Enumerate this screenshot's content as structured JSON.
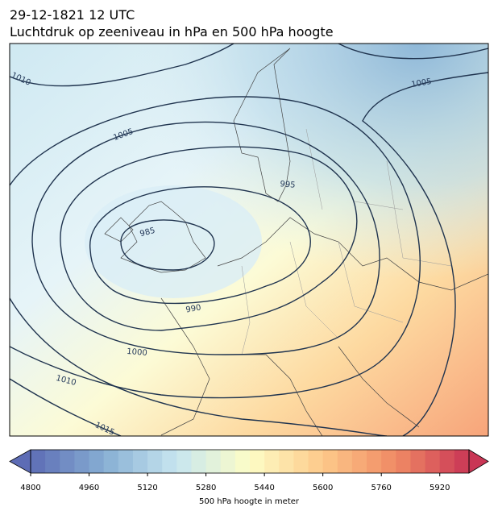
{
  "header": {
    "title": [
      "29-12-1821 12 UTC",
      "Luchtdruk op zeeniveau in hPa en 500 hPa hoogte"
    ]
  },
  "map": {
    "contour_labels": [
      1010,
      1005,
      995,
      985,
      990,
      1000,
      1010,
      1015,
      1005
    ]
  },
  "colorbar": {
    "label": "500 hPa hoogte in meter",
    "range": [
      4800,
      6000
    ],
    "step": 40,
    "ticks": [
      4800,
      4960,
      5120,
      5280,
      5440,
      5600,
      5760,
      5920
    ],
    "colormap": [
      "#5d6cb5",
      "#86aed3",
      "#c7e6f0",
      "#fdfdc6",
      "#fdc98a",
      "#f08a64",
      "#c93655"
    ]
  }
}
